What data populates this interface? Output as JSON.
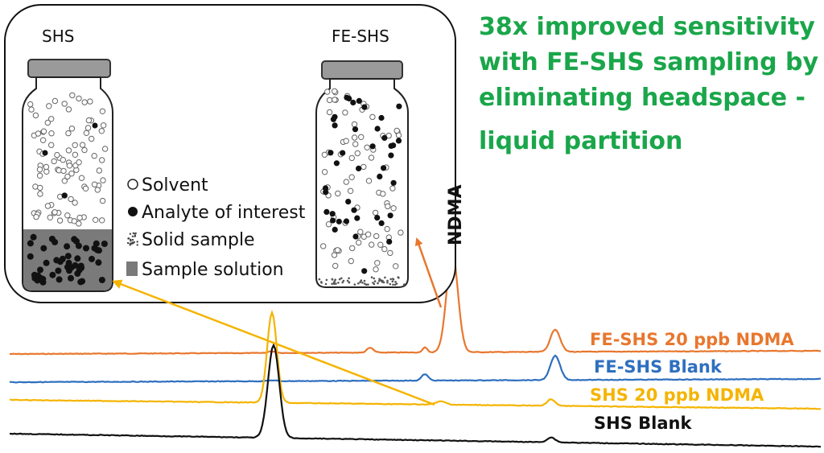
{
  "inset": {
    "shs_title": "SHS",
    "fe_shs_title": "FE-SHS"
  },
  "legend": {
    "solvent": "Solvent",
    "analyte": "Analyte of interest",
    "solid": "Solid sample",
    "solution": "Sample solution"
  },
  "headline": [
    "38x improved sensitivity",
    "with FE-SHS sampling by",
    "eliminating headspace -",
    "liquid partition"
  ],
  "peak_label": "NDMA",
  "traces": [
    {
      "name": "FE-SHS 20 ppb NDMA",
      "color": "#e8772e"
    },
    {
      "name": "FE-SHS Blank",
      "color": "#2e6fbf"
    },
    {
      "name": "SHS 20 ppb NDMA",
      "color": "#f5b400"
    },
    {
      "name": "SHS Blank",
      "color": "#111111"
    }
  ],
  "colors": {
    "headline": "#1aa64a",
    "fe_arrow": "#e8772e",
    "shs_arrow": "#f5b400",
    "cap": "#9a9a9a",
    "solution": "#7a7a7a"
  }
}
